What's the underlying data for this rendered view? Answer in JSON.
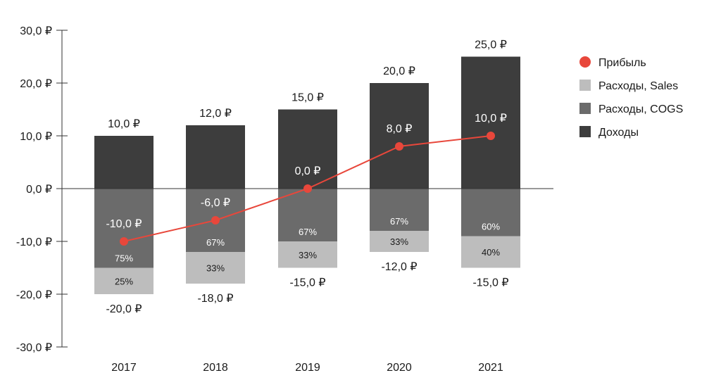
{
  "chart_data": {
    "type": "bar",
    "stacked": true,
    "categories": [
      "2017",
      "2018",
      "2019",
      "2020",
      "2021"
    ],
    "series": [
      {
        "name": "Доходы",
        "values": [
          10,
          12,
          15,
          20,
          25
        ],
        "labels": [
          "10,0 ₽",
          "12,0 ₽",
          "15,0 ₽",
          "20,0 ₽",
          "25,0 ₽"
        ],
        "color": "#3d3d3d"
      },
      {
        "name": "Расходы, COGS",
        "values": [
          -15,
          -12,
          -10,
          -8,
          -9
        ],
        "share_labels": [
          "75%",
          "67%",
          "67%",
          "67%",
          "60%"
        ],
        "color": "#6b6b6b"
      },
      {
        "name": "Расходы, Sales",
        "values": [
          -5,
          -6,
          -5,
          -4,
          -6
        ],
        "share_labels": [
          "25%",
          "33%",
          "33%",
          "33%",
          "40%"
        ],
        "color": "#bdbdbd"
      },
      {
        "name": "Прибыль",
        "type": "line",
        "values": [
          -10,
          -6,
          0,
          8,
          10
        ],
        "labels": [
          "-10,0 ₽",
          "-6,0 ₽",
          "0,0 ₽",
          "8,0 ₽",
          "10,0 ₽"
        ],
        "color": "#e8473b"
      }
    ],
    "expense_totals": [
      "-20,0 ₽",
      "-18,0 ₽",
      "-15,0 ₽",
      "-12,0 ₽",
      "-15,0 ₽"
    ],
    "y_ticks": [
      30,
      20,
      10,
      0,
      -10,
      -20,
      -30
    ],
    "y_tick_labels": [
      "30,0 ₽",
      "20,0 ₽",
      "10,0 ₽",
      "0,0 ₽",
      "-10,0 ₽",
      "-20,0 ₽",
      "-30,0 ₽"
    ],
    "ylim": [
      -30,
      30
    ],
    "legend": {
      "position": "right",
      "items": [
        {
          "label": "Прибыль",
          "marker": "circle",
          "color": "#e8473b"
        },
        {
          "label": "Расходы, Sales",
          "marker": "square",
          "color": "#bdbdbd"
        },
        {
          "label": "Расходы, COGS",
          "marker": "square",
          "color": "#6b6b6b"
        },
        {
          "label": "Доходы",
          "marker": "square",
          "color": "#3d3d3d"
        }
      ]
    },
    "grid": false,
    "title": "",
    "xlabel": "",
    "ylabel": ""
  }
}
